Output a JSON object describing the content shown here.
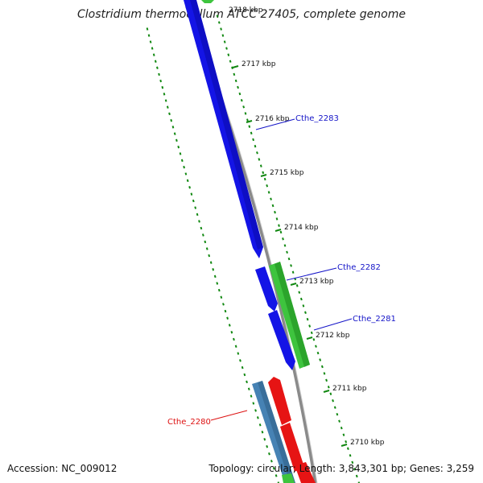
{
  "title": "Clostridium thermocellum ATCC 27405, complete genome",
  "accession": "Accession: NC_009012",
  "stats": "Topology: circular; Length: 3,843,301 bp; Genes: 3,259",
  "colors": {
    "forward_cds": "#1414e6",
    "reverse_cds": "#3ec43e",
    "rna": "#e61414",
    "other": "#4682b4",
    "backbone": "#888888",
    "ticks": "#118811"
  },
  "ruler_labels": [
    "2718 kbp",
    "2717 kbp",
    "2716 kbp",
    "2715 kbp",
    "2714 kbp",
    "2713 kbp",
    "2712 kbp",
    "2711 kbp",
    "2710 kbp"
  ],
  "gene_labels": [
    {
      "name": "Cthe_2283",
      "color": "#1414c8"
    },
    {
      "name": "Cthe_2282",
      "color": "#1414c8"
    },
    {
      "name": "Cthe_2281",
      "color": "#1414c8"
    },
    {
      "name": "Cthe_2280",
      "color": "#dd1111"
    }
  ]
}
